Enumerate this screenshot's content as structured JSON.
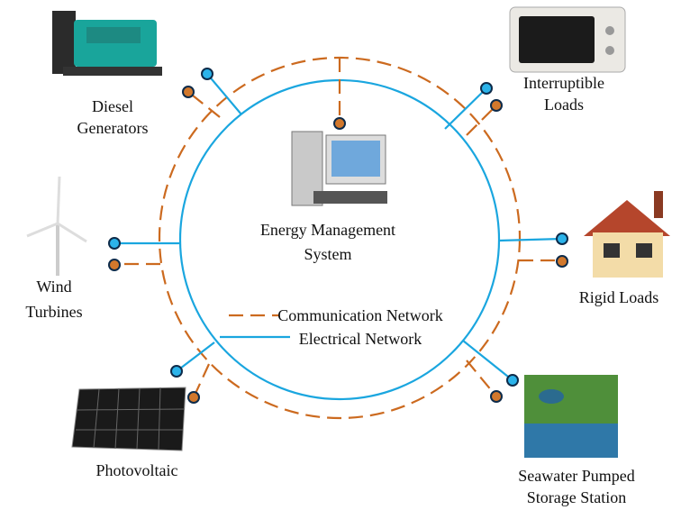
{
  "nodes": [
    {
      "label": [
        "Diesel",
        "Generators"
      ]
    },
    {
      "label": [
        "Interruptible",
        "Loads"
      ]
    },
    {
      "label": [
        "Energy Management",
        "System"
      ]
    },
    {
      "label": [
        "Wind",
        "Turbines"
      ]
    },
    {
      "label": [
        "Rigid Loads"
      ]
    },
    {
      "label": [
        "Photovoltaic"
      ]
    },
    {
      "label": [
        "Seawater Pumped",
        "Storage Station"
      ]
    }
  ],
  "legend": [
    "Communication Network",
    "Electrical Network"
  ]
}
